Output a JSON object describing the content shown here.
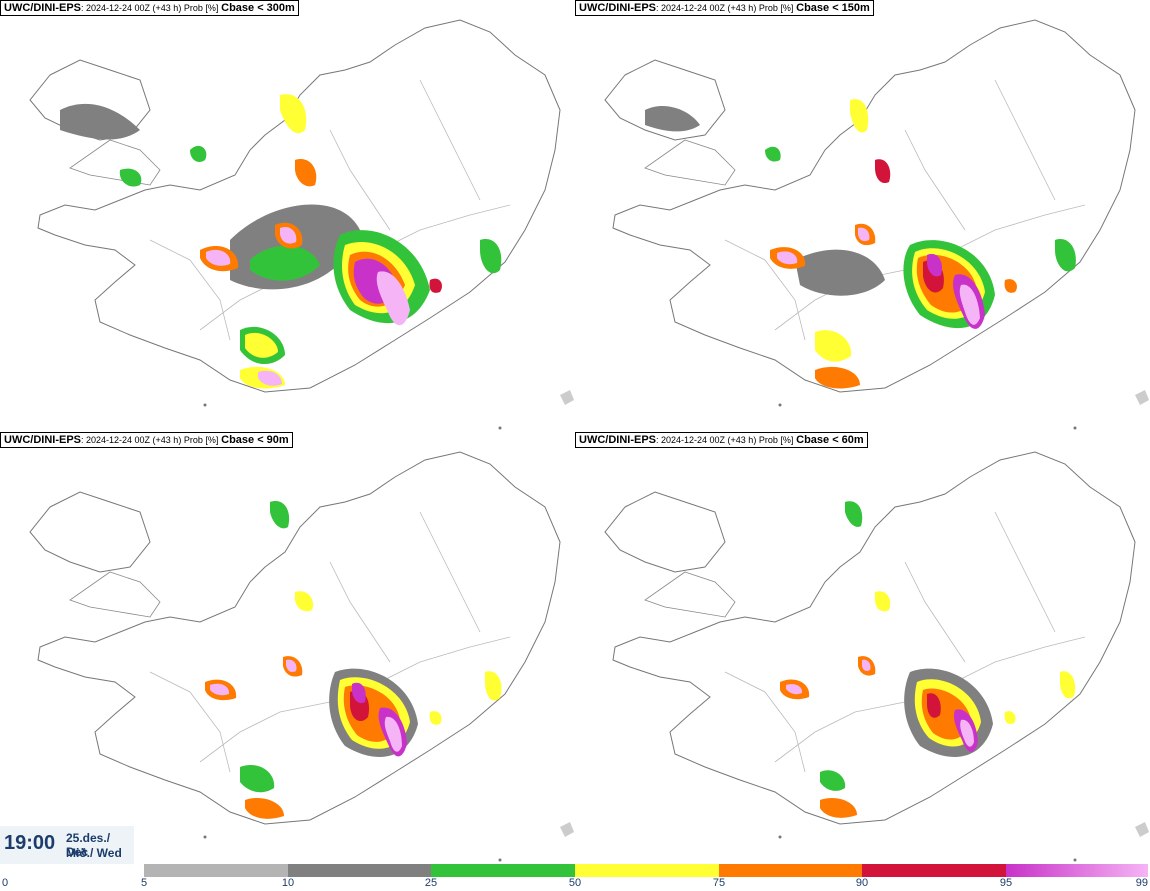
{
  "panels": [
    {
      "model": "UWC/DINI-EPS",
      "meta": ": 2024-12-24 00Z (+43 h) Prob [%]",
      "param": "Cbase < 300m"
    },
    {
      "model": "UWC/DINI-EPS",
      "meta": ": 2024-12-24 00Z (+43 h) Prob [%]",
      "param": "Cbase < 150m"
    },
    {
      "model": "UWC/DINI-EPS",
      "meta": ": 2024-12-24 00Z (+43 h) Prob [%]",
      "param": "Cbase < 90m"
    },
    {
      "model": "UWC/DINI-EPS",
      "meta": ": 2024-12-24 00Z (+43 h) Prob [%]",
      "param": "Cbase < 60m"
    }
  ],
  "time": {
    "clock": "19:00",
    "date_line1": "25.des./ Dec",
    "date_line2": "Mið./ Wed"
  },
  "legend": {
    "ticks": [
      "0",
      "5",
      "10",
      "25",
      "50",
      "75",
      "90",
      "95",
      "99"
    ],
    "colors": [
      "#ffffff",
      "#b4b4b4",
      "#808080",
      "#33c33a",
      "#ffff33",
      "#ff7a00",
      "#d2143a",
      "#c832c8",
      "#f5b4f5"
    ]
  }
}
